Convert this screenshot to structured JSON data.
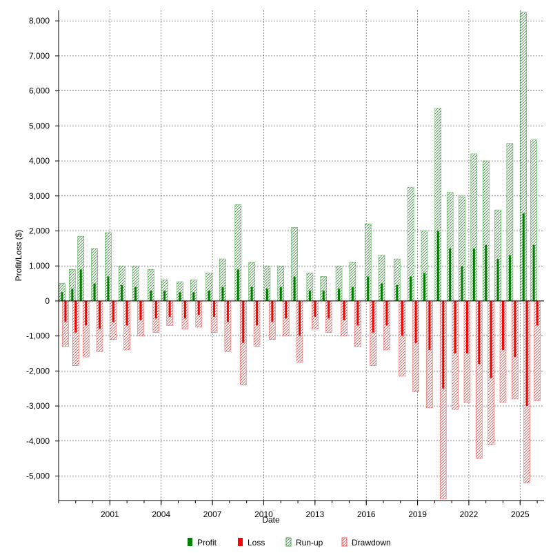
{
  "chart_data": {
    "type": "bar",
    "xlabel": "Date",
    "ylabel": "Profit/Loss ($)",
    "xlim": [
      1998.0,
      2026.4
    ],
    "ylim": [
      -5700,
      8300
    ],
    "x_ticks": [
      {
        "value": 2001,
        "label": "2001"
      },
      {
        "value": 2004,
        "label": "2004"
      },
      {
        "value": 2007,
        "label": "2007"
      },
      {
        "value": 2010,
        "label": "2010"
      },
      {
        "value": 2013,
        "label": "2013"
      },
      {
        "value": 2016,
        "label": "2016"
      },
      {
        "value": 2019,
        "label": "2019"
      },
      {
        "value": 2022,
        "label": "2022"
      },
      {
        "value": 2025,
        "label": "2025"
      }
    ],
    "y_ticks": [
      {
        "value": 8000,
        "label": "8,000"
      },
      {
        "value": 7000,
        "label": "7,000"
      },
      {
        "value": 6000,
        "label": "6,000"
      },
      {
        "value": 5000,
        "label": "5,000"
      },
      {
        "value": 4000,
        "label": "4,000"
      },
      {
        "value": 3000,
        "label": "3,000"
      },
      {
        "value": 2000,
        "label": "2,000"
      },
      {
        "value": 1000,
        "label": "1,000"
      },
      {
        "value": 0,
        "label": "0"
      },
      {
        "value": -1000,
        "label": "-1,000"
      },
      {
        "value": -2000,
        "label": "-2,000"
      },
      {
        "value": -3000,
        "label": "-3,000"
      },
      {
        "value": -4000,
        "label": "-4,000"
      },
      {
        "value": -5000,
        "label": "-5,000"
      }
    ],
    "grid": true,
    "legend_position": "bottom",
    "series": [
      {
        "name": "Profit",
        "color": "#008000",
        "style": "solid",
        "x": [
          1998.2,
          1998.8,
          1999.3,
          2000.1,
          2000.9,
          2001.7,
          2002.5,
          2003.4,
          2004.2,
          2005.1,
          2005.9,
          2006.8,
          2007.6,
          2008.5,
          2009.3,
          2010.2,
          2011.0,
          2011.8,
          2012.7,
          2013.5,
          2014.4,
          2015.2,
          2016.1,
          2016.9,
          2017.8,
          2018.6,
          2019.4,
          2020.2,
          2020.9,
          2021.6,
          2022.3,
          2023.0,
          2023.7,
          2024.4,
          2025.2,
          2025.8
        ],
        "values": [
          250,
          350,
          900,
          500,
          700,
          450,
          400,
          300,
          300,
          250,
          250,
          300,
          400,
          900,
          400,
          350,
          400,
          700,
          300,
          300,
          350,
          400,
          700,
          500,
          450,
          700,
          800,
          2000,
          1500,
          1000,
          1500,
          1600,
          1200,
          1300,
          2500,
          1600
        ]
      },
      {
        "name": "Loss",
        "color": "#ff0000",
        "style": "solid",
        "x": [
          1998.4,
          1999.0,
          1999.6,
          2000.4,
          2001.2,
          2002.0,
          2002.8,
          2003.7,
          2004.5,
          2005.4,
          2006.2,
          2007.1,
          2007.9,
          2008.8,
          2009.6,
          2010.5,
          2011.3,
          2012.1,
          2013.0,
          2013.8,
          2014.7,
          2015.5,
          2016.4,
          2017.2,
          2018.1,
          2018.9,
          2019.7,
          2020.5,
          2021.2,
          2021.9,
          2022.6,
          2023.3,
          2024.0,
          2024.7,
          2025.4,
          2026.0
        ],
        "values": [
          -600,
          -900,
          -700,
          -800,
          -600,
          -700,
          -550,
          -500,
          -450,
          -500,
          -400,
          -450,
          -600,
          -1200,
          -700,
          -600,
          -500,
          -1000,
          -450,
          -500,
          -550,
          -700,
          -900,
          -700,
          -1000,
          -1200,
          -1400,
          -2500,
          -1500,
          -1500,
          -1800,
          -2200,
          -1400,
          -1600,
          -3000,
          -700
        ]
      },
      {
        "name": "Run-up",
        "color": "#3aa63a",
        "style": "hatched",
        "x": [
          1998.2,
          1998.8,
          1999.3,
          2000.1,
          2000.9,
          2001.7,
          2002.5,
          2003.4,
          2004.2,
          2005.1,
          2005.9,
          2006.8,
          2007.6,
          2008.5,
          2009.3,
          2010.2,
          2011.0,
          2011.8,
          2012.7,
          2013.5,
          2014.4,
          2015.2,
          2016.1,
          2016.9,
          2017.8,
          2018.6,
          2019.4,
          2020.2,
          2020.9,
          2021.6,
          2022.3,
          2023.0,
          2023.7,
          2024.4,
          2025.2,
          2025.8
        ],
        "values": [
          500,
          900,
          1850,
          1500,
          1950,
          1000,
          1000,
          900,
          600,
          550,
          600,
          800,
          1200,
          2750,
          1100,
          1000,
          1000,
          2100,
          800,
          700,
          1000,
          1100,
          2200,
          1300,
          1200,
          3250,
          2000,
          5500,
          3100,
          3000,
          4200,
          4000,
          2600,
          4500,
          8250,
          4600
        ]
      },
      {
        "name": "Drawdown",
        "color": "#ff5050",
        "style": "hatched",
        "x": [
          1998.4,
          1999.0,
          1999.6,
          2000.4,
          2001.2,
          2002.0,
          2002.8,
          2003.7,
          2004.5,
          2005.4,
          2006.2,
          2007.1,
          2007.9,
          2008.8,
          2009.6,
          2010.5,
          2011.3,
          2012.1,
          2013.0,
          2013.8,
          2014.7,
          2015.5,
          2016.4,
          2017.2,
          2018.1,
          2018.9,
          2019.7,
          2020.5,
          2021.2,
          2021.9,
          2022.6,
          2023.3,
          2024.0,
          2024.7,
          2025.4,
          2026.0
        ],
        "values": [
          -1300,
          -1850,
          -1600,
          -1450,
          -1100,
          -1400,
          -1000,
          -900,
          -700,
          -800,
          -750,
          -900,
          -1450,
          -2400,
          -1300,
          -1100,
          -1000,
          -1750,
          -800,
          -900,
          -1000,
          -1300,
          -1850,
          -1400,
          -2150,
          -2600,
          -3050,
          -5650,
          -3100,
          -2900,
          -4500,
          -4100,
          -2900,
          -2800,
          -5200,
          -2850
        ]
      }
    ]
  }
}
